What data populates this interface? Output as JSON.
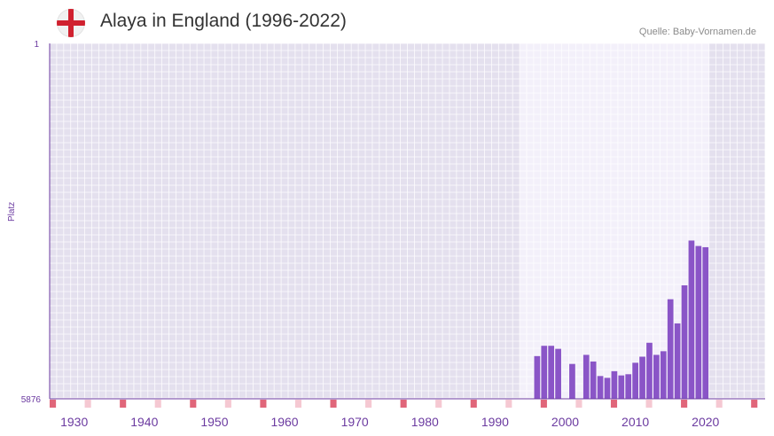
{
  "header": {
    "title": "Alaya in England (1996-2022)",
    "source": "Quelle: Baby-Vornamen.de",
    "flag_icon": "england-flag-icon"
  },
  "chart_data": {
    "type": "bar",
    "title": "Alaya in England (1996-2022)",
    "ylabel": "Platz",
    "xlabel": "",
    "y_axis": {
      "top_label": "1",
      "bottom_label": "5876",
      "min_rank": 1,
      "max_rank": 5876,
      "inverted": true
    },
    "x_range": [
      1927,
      2028
    ],
    "highlight_range": [
      1994,
      2020
    ],
    "x_ticks": [
      1930,
      1940,
      1950,
      1960,
      1970,
      1980,
      1990,
      2000,
      2010,
      2020
    ],
    "x_tick_labels": [
      "1930",
      "1940",
      "1950",
      "1960",
      "1970",
      "1980",
      "1990",
      "2000",
      "2010",
      "2020"
    ],
    "major_marker_years": [
      1927,
      1937,
      1947,
      1957,
      1967,
      1977,
      1987,
      1997,
      2007,
      2017,
      2027
    ],
    "minor_marker_years": [
      1932,
      1942,
      1952,
      1962,
      1972,
      1982,
      1992,
      2002,
      2012,
      2022
    ],
    "series": [
      {
        "name": "Alaya",
        "years": [
          1996,
          1997,
          1998,
          1999,
          2000,
          2001,
          2002,
          2003,
          2004,
          2005,
          2006,
          2007,
          2008,
          2009,
          2010,
          2011,
          2012,
          2013,
          2014,
          2015,
          2016,
          2017,
          2018,
          2019,
          2020,
          2021,
          2022
        ],
        "ranks": [
          5170,
          5000,
          5000,
          5050,
          null,
          5300,
          null,
          5150,
          5260,
          5500,
          5530,
          5420,
          5490,
          5470,
          5280,
          5180,
          4950,
          5150,
          5090,
          4230,
          4630,
          4000,
          3260,
          3350,
          3370,
          null,
          null
        ]
      }
    ],
    "colors": {
      "bar": "#8a55c7",
      "plot_bg": "#e4e0ee",
      "highlight_bg": "#f3f0fa",
      "grid": "#ffffff",
      "axis": "#6b3aa0",
      "major_marker": "#e0667a",
      "minor_marker": "#f5c8d2",
      "tick_text": "#6b3aa0"
    }
  }
}
